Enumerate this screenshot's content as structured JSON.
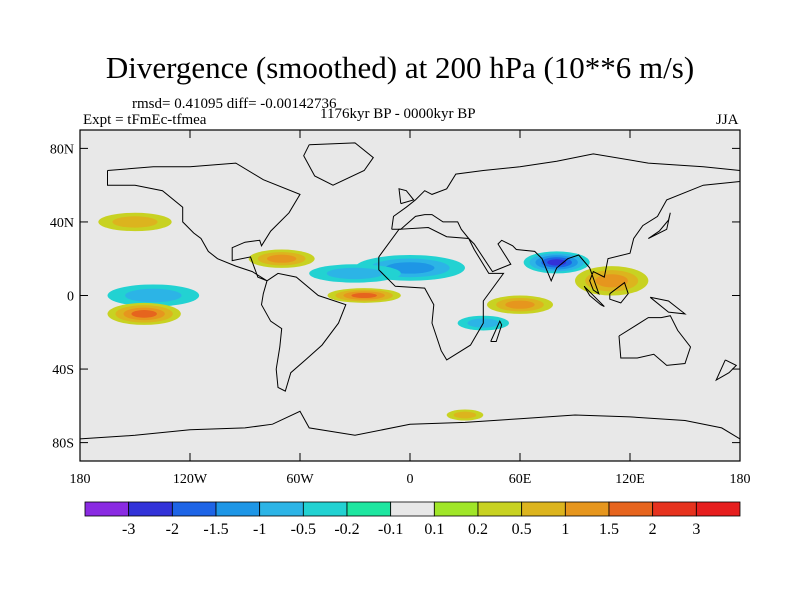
{
  "title": "Divergence (smoothed) at 200 hPa (10**6 m/s)",
  "stats": "rmsd= 0.41095 diff= -0.00142736",
  "experiment": "Expt = tFmEc-tfmea",
  "period": "1176kyr BP - 0000kyr BP",
  "season": "JJA",
  "y_ticks": [
    {
      "lat": 80,
      "label": "80N"
    },
    {
      "lat": 40,
      "label": "40N"
    },
    {
      "lat": 0,
      "label": "0"
    },
    {
      "lat": -40,
      "label": "40S"
    },
    {
      "lat": -80,
      "label": "80S"
    }
  ],
  "x_ticks": [
    {
      "lon": -180,
      "label": "180"
    },
    {
      "lon": -120,
      "label": "120W"
    },
    {
      "lon": -60,
      "label": "60W"
    },
    {
      "lon": 0,
      "label": "0"
    },
    {
      "lon": 60,
      "label": "60E"
    },
    {
      "lon": 120,
      "label": "120E"
    },
    {
      "lon": 180,
      "label": "180"
    }
  ],
  "colorbar": {
    "colors": [
      "#8a2be2",
      "#3232d8",
      "#1e64e6",
      "#1e96e6",
      "#2cb4e6",
      "#22d2d2",
      "#1ee6a0",
      "#e8e8e8",
      "#a0e628",
      "#c8d222",
      "#dcb41e",
      "#e6961e",
      "#e6641e",
      "#e6321e",
      "#e61e1e"
    ],
    "labels": [
      "-3",
      "-2",
      "-1.5",
      "-1",
      "-0.5",
      "-0.2",
      "-0.1",
      "0.1",
      "0.2",
      "0.5",
      "1",
      "1.5",
      "2",
      "3"
    ]
  },
  "chart_data": {
    "type": "heatmap",
    "variable": "Divergence (smoothed) at 200 hPa",
    "units": "10**6 m/s",
    "lon_range": [
      -180,
      180
    ],
    "lat_range": [
      -90,
      90
    ],
    "levels": [
      -3,
      -2,
      -1.5,
      -1,
      -0.5,
      -0.2,
      -0.1,
      0.1,
      0.2,
      0.5,
      1,
      1.5,
      2,
      3
    ],
    "background_value_range": [
      -0.1,
      0.1
    ],
    "features": [
      {
        "name": "south-asia-convergence",
        "lon": 80,
        "lat": 18,
        "rlon": 18,
        "rlat": 6,
        "value": -2.0
      },
      {
        "name": "north-africa-convergence",
        "lon": 0,
        "lat": 15,
        "rlon": 30,
        "rlat": 7,
        "value": -1.0
      },
      {
        "name": "tropical-atlantic-convergence",
        "lon": -30,
        "lat": 12,
        "rlon": 25,
        "rlat": 5,
        "value": -0.8
      },
      {
        "name": "east-pacific-convergence",
        "lon": -140,
        "lat": 0,
        "rlon": 25,
        "rlat": 6,
        "value": -0.8
      },
      {
        "name": "equatorial-atlantic-divergence",
        "lon": -25,
        "lat": 0,
        "rlon": 20,
        "rlat": 4,
        "value": 1.5
      },
      {
        "name": "central-america-divergence",
        "lon": -70,
        "lat": 20,
        "rlon": 18,
        "rlat": 5,
        "value": 1.0
      },
      {
        "name": "maritime-continent-divergence",
        "lon": 110,
        "lat": 8,
        "rlon": 20,
        "rlat": 8,
        "value": 1.0
      },
      {
        "name": "south-pacific-divergence",
        "lon": -145,
        "lat": -10,
        "rlon": 20,
        "rlat": 6,
        "value": 1.5
      },
      {
        "name": "indian-ocean-divergence",
        "lon": 60,
        "lat": -5,
        "rlon": 18,
        "rlat": 5,
        "value": 1.0
      },
      {
        "name": "south-atlantic-convergence",
        "lon": 40,
        "lat": -15,
        "rlon": 14,
        "rlat": 4,
        "value": -0.8
      },
      {
        "name": "north-pacific-divergence",
        "lon": -150,
        "lat": 40,
        "rlon": 20,
        "rlat": 5,
        "value": 0.5
      },
      {
        "name": "antarctic-divergence",
        "lon": 30,
        "lat": -65,
        "rlon": 10,
        "rlat": 3,
        "value": 0.5
      }
    ]
  }
}
